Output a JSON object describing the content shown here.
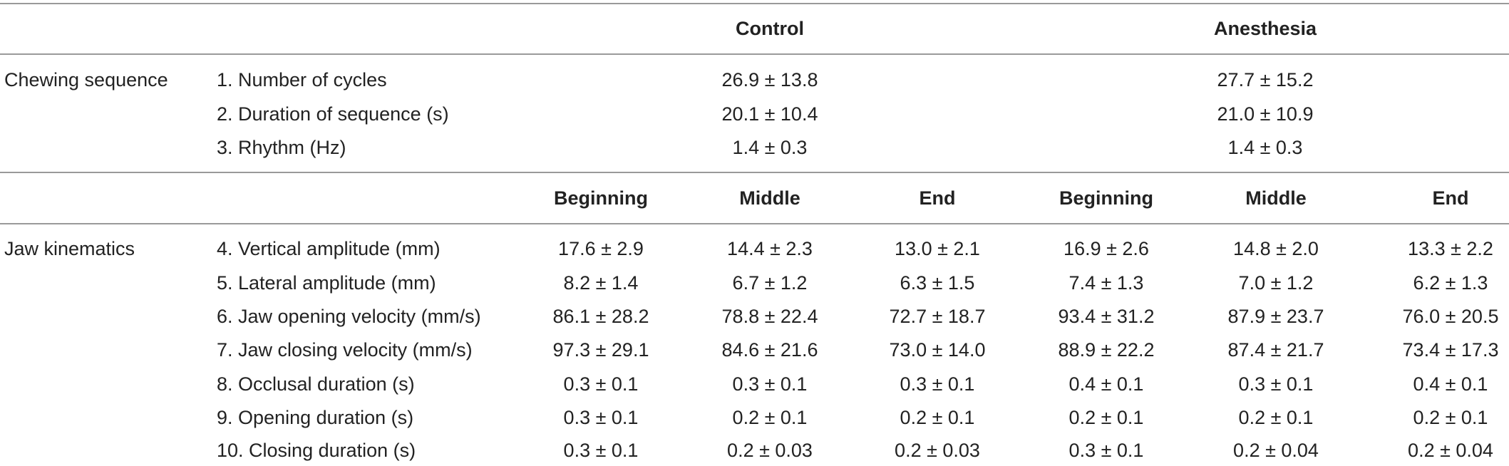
{
  "header": {
    "group_labels": [
      "Control",
      "Anesthesia"
    ]
  },
  "chewing_sequence": {
    "section_label": "Chewing sequence",
    "rows": [
      {
        "label": "1. Number of cycles",
        "control": "26.9 ± 13.8",
        "anesthesia": "27.7 ± 15.2"
      },
      {
        "label": "2. Duration of sequence (s)",
        "control": "20.1 ± 10.4",
        "anesthesia": "21.0 ± 10.9"
      },
      {
        "label": "3. Rhythm (Hz)",
        "control": "1.4 ± 0.3",
        "anesthesia": "1.4 ± 0.3"
      }
    ]
  },
  "subheader": {
    "phases": [
      "Beginning",
      "Middle",
      "End",
      "Beginning",
      "Middle",
      "End"
    ]
  },
  "jaw_kinematics": {
    "section_label": "Jaw kinematics",
    "rows": [
      {
        "label": "4. Vertical amplitude (mm)",
        "values": [
          "17.6 ± 2.9",
          "14.4 ± 2.3",
          "13.0 ± 2.1",
          "16.9 ± 2.6",
          "14.8 ± 2.0",
          "13.3 ± 2.2"
        ]
      },
      {
        "label": "5. Lateral amplitude (mm)",
        "values": [
          "8.2 ± 1.4",
          "6.7 ± 1.2",
          "6.3 ± 1.5",
          "7.4 ± 1.3",
          "7.0 ± 1.2",
          "6.2 ± 1.3"
        ]
      },
      {
        "label": "6. Jaw opening velocity (mm/s)",
        "values": [
          "86.1 ± 28.2",
          "78.8 ± 22.4",
          "72.7 ± 18.7",
          "93.4 ± 31.2",
          "87.9 ± 23.7",
          "76.0 ± 20.5"
        ]
      },
      {
        "label": "7. Jaw closing velocity (mm/s)",
        "values": [
          "97.3 ± 29.1",
          "84.6 ± 21.6",
          "73.0 ± 14.0",
          "88.9 ± 22.2",
          "87.4 ± 21.7",
          "73.4 ± 17.3"
        ]
      },
      {
        "label": "8. Occlusal duration (s)",
        "values": [
          "0.3 ± 0.1",
          "0.3 ± 0.1",
          "0.3 ± 0.1",
          "0.4 ± 0.1",
          "0.3 ± 0.1",
          "0.4 ± 0.1"
        ]
      },
      {
        "label": "9. Opening duration (s)",
        "values": [
          "0.3 ± 0.1",
          "0.2 ± 0.1",
          "0.2 ± 0.1",
          "0.2 ± 0.1",
          "0.2 ± 0.1",
          "0.2 ± 0.1"
        ]
      },
      {
        "label": "10. Closing duration (s)",
        "values": [
          "0.3 ± 0.1",
          "0.2 ± 0.03",
          "0.2 ± 0.03",
          "0.3 ± 0.1",
          "0.2 ± 0.04",
          "0.2 ± 0.04"
        ]
      }
    ]
  }
}
